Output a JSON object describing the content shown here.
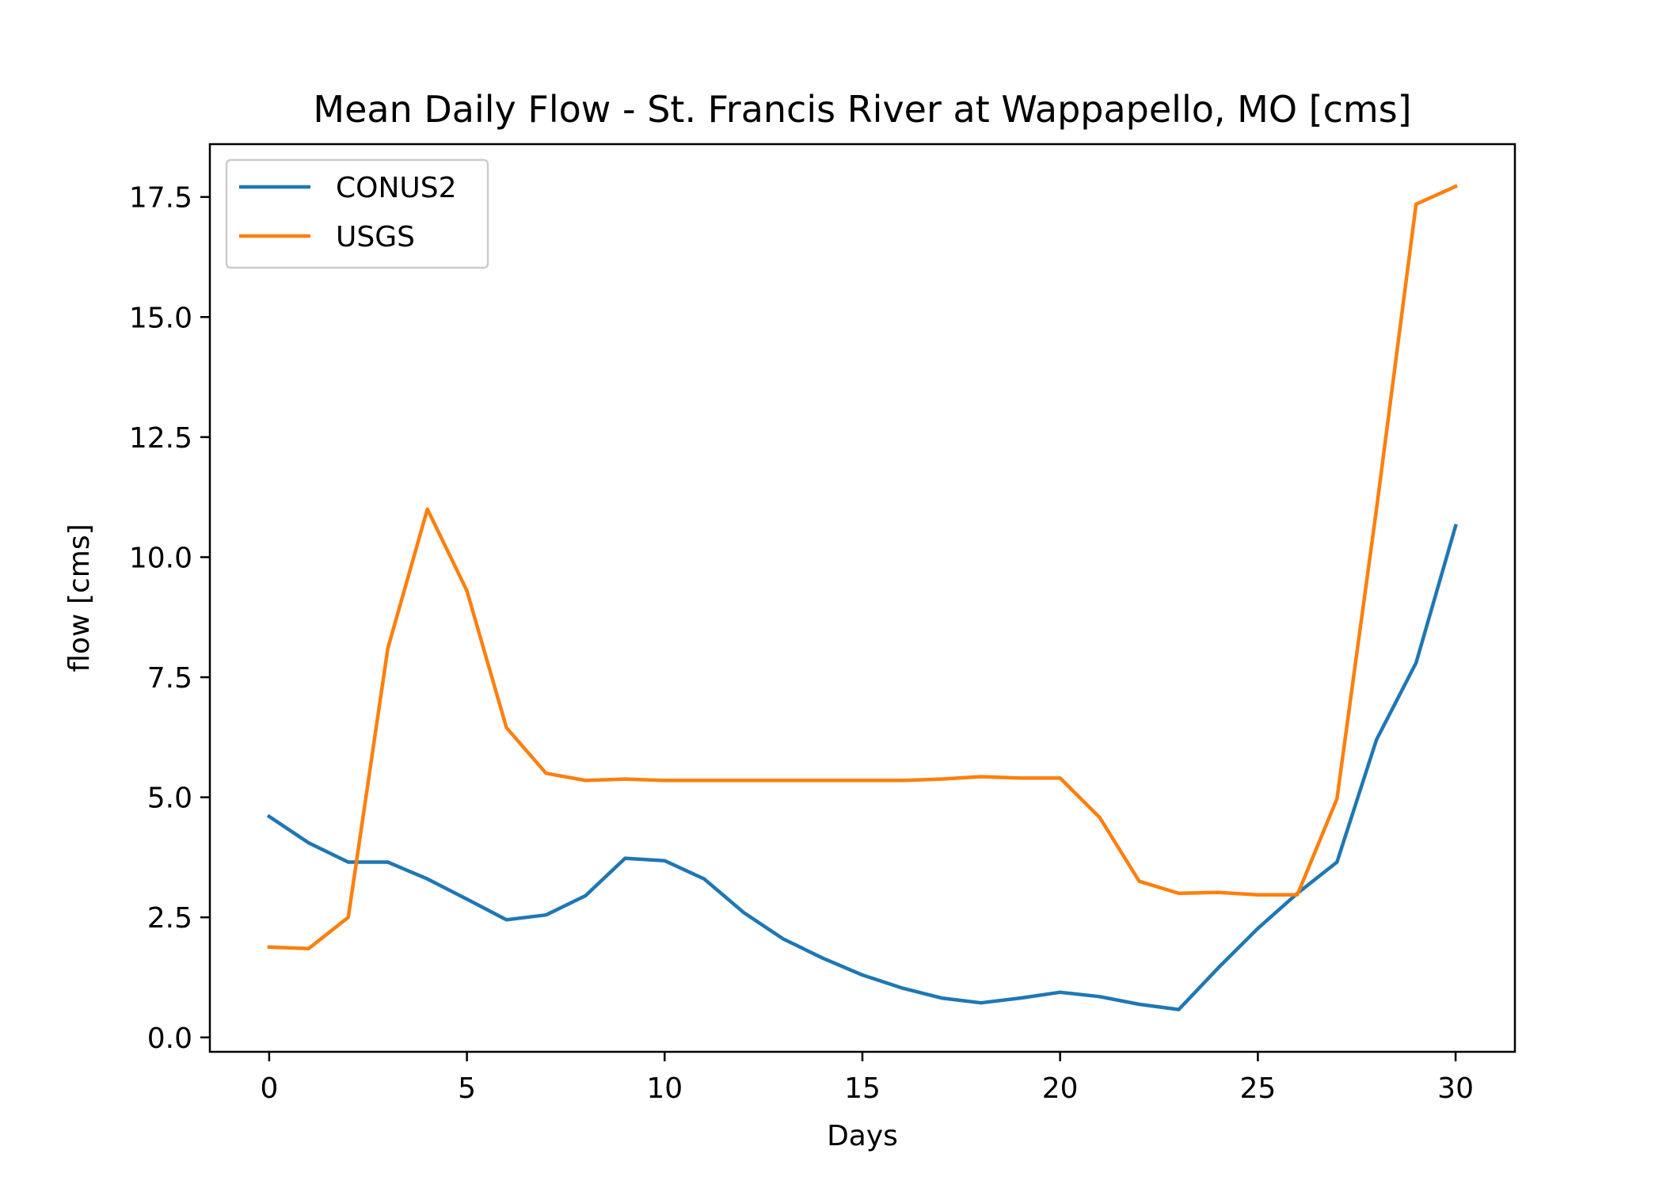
{
  "chart_data": {
    "type": "line",
    "title": "Mean Daily Flow - St. Francis River at Wappapello, MO [cms]",
    "xlabel": "Days",
    "ylabel": "flow [cms]",
    "xlim": [
      -1.5,
      31.5
    ],
    "ylim": [
      -0.3,
      18.6
    ],
    "x_ticks": [
      0,
      5,
      10,
      15,
      20,
      25,
      30
    ],
    "x_tick_labels": [
      "0",
      "5",
      "10",
      "15",
      "20",
      "25",
      "30"
    ],
    "y_ticks": [
      0,
      2.5,
      5,
      7.5,
      10,
      12.5,
      15,
      17.5
    ],
    "y_tick_labels": [
      "0.0",
      "2.5",
      "5.0",
      "7.5",
      "10.0",
      "12.5",
      "15.0",
      "17.5"
    ],
    "grid": false,
    "legend_position": "upper-left",
    "x": [
      0,
      1,
      2,
      3,
      4,
      5,
      6,
      7,
      8,
      9,
      10,
      11,
      12,
      13,
      14,
      15,
      16,
      17,
      18,
      19,
      20,
      21,
      22,
      23,
      24,
      25,
      26,
      27,
      28,
      29,
      30
    ],
    "series": [
      {
        "name": "CONUS2",
        "color": "#1f77b4",
        "values": [
          4.6,
          4.05,
          3.65,
          3.65,
          3.3,
          2.88,
          2.45,
          2.55,
          2.95,
          3.73,
          3.68,
          3.3,
          2.6,
          2.05,
          1.65,
          1.3,
          1.03,
          0.82,
          0.72,
          0.82,
          0.94,
          0.85,
          0.69,
          0.58,
          1.45,
          2.27,
          3.0,
          3.65,
          6.2,
          7.8,
          10.65
        ]
      },
      {
        "name": "USGS",
        "color": "#ff7f0e",
        "values": [
          1.88,
          1.85,
          2.5,
          8.1,
          11.0,
          9.3,
          6.45,
          5.5,
          5.35,
          5.38,
          5.35,
          5.35,
          5.35,
          5.35,
          5.35,
          5.35,
          5.35,
          5.38,
          5.43,
          5.4,
          5.4,
          4.58,
          3.25,
          3.0,
          3.02,
          2.97,
          2.97,
          4.97,
          11.0,
          17.35,
          17.72
        ]
      }
    ]
  }
}
